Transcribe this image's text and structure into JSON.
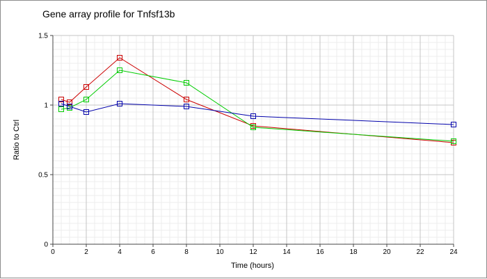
{
  "chart_data": {
    "type": "line",
    "title": "Gene array profile for Tnfsf13b",
    "xlabel": "Time (hours)",
    "ylabel": "Ratio to Ctrl",
    "xlim": [
      0,
      24
    ],
    "ylim": [
      0,
      1.5
    ],
    "x_ticks": [
      0,
      2,
      4,
      6,
      8,
      10,
      12,
      14,
      16,
      18,
      20,
      22,
      24
    ],
    "x_tick_labels": [
      "0",
      "2",
      "4",
      "6",
      "8",
      "10",
      "12",
      "14",
      "16",
      "18",
      "20",
      "22",
      "24"
    ],
    "y_ticks": [
      0,
      0.5,
      1,
      1.5
    ],
    "y_tick_labels": [
      "0",
      "0.5",
      "1",
      "1.5"
    ],
    "grid": true,
    "minor_grid": true,
    "legend": "none",
    "marker": "square",
    "x": [
      0.5,
      1,
      2,
      4,
      8,
      12,
      24
    ],
    "series": [
      {
        "color": "#cc0000",
        "values": [
          1.04,
          1.02,
          1.13,
          1.34,
          1.04,
          0.85,
          0.73
        ]
      },
      {
        "color": "#00cc00",
        "values": [
          0.97,
          0.98,
          1.04,
          1.25,
          1.16,
          0.84,
          0.74
        ]
      },
      {
        "color": "#0000aa",
        "values": [
          1.01,
          0.99,
          0.95,
          1.01,
          0.99,
          0.92,
          0.86
        ]
      }
    ]
  }
}
